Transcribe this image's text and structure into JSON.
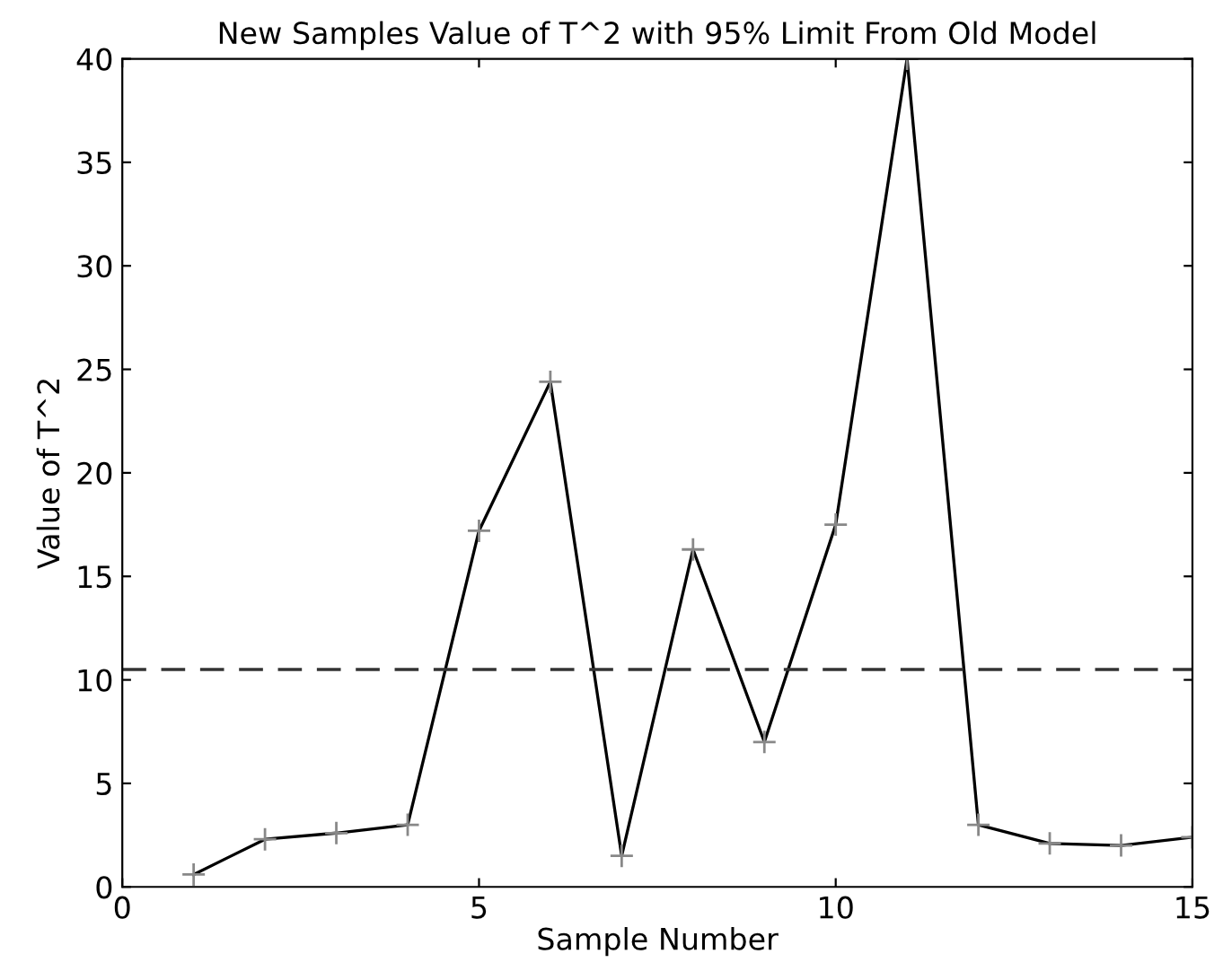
{
  "chart_data": {
    "type": "line",
    "title": "New Samples Value of T^2 with 95% Limit From Old Model",
    "xlabel": "Sample Number",
    "ylabel": "Value of T^2",
    "x": [
      1,
      2,
      3,
      4,
      5,
      6,
      7,
      8,
      9,
      10,
      11,
      12,
      13,
      14,
      15
    ],
    "series": [
      {
        "color": "#000000",
        "values": [
          0.6,
          2.3,
          2.6,
          3.0,
          17.2,
          24.4,
          1.5,
          16.3,
          7.0,
          17.5,
          40,
          3.0,
          2.1,
          2.0,
          2.4
        ]
      }
    ],
    "xlim": [
      0,
      15
    ],
    "xticks": [
      0,
      5,
      10,
      15
    ],
    "ylim": [
      0,
      40
    ],
    "yticks": [
      0,
      5,
      10,
      15,
      20,
      25,
      30,
      35,
      40
    ],
    "ref_lines": [
      {
        "axis": "y",
        "value": 10.5,
        "color": "#333333",
        "line_style": "dashed"
      }
    ],
    "marker": "cross",
    "line_style": "solid",
    "grid": false,
    "legend": false
  }
}
